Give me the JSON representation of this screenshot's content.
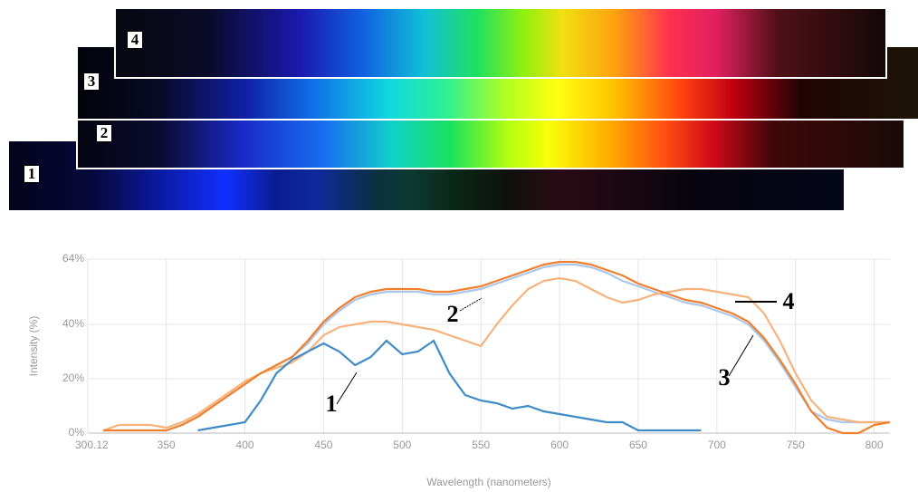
{
  "strips": {
    "labels": [
      "1",
      "2",
      "3",
      "4"
    ]
  },
  "chart_data": {
    "type": "line",
    "y_label": "Intensity (%)",
    "x_label": "Wavelength (nanometers)",
    "annotations": [
      "1",
      "2",
      "3",
      "4"
    ],
    "xlim": [
      300.12,
      810
    ],
    "ylim": [
      0,
      64
    ],
    "xticks": [
      {
        "value": 300.12,
        "label": "300.12"
      },
      350,
      400,
      450,
      500,
      550,
      600,
      650,
      700,
      750,
      800
    ],
    "yticks": [
      {
        "value": 0,
        "label": "0%"
      },
      {
        "value": 20,
        "label": "20%"
      },
      {
        "value": 40,
        "label": "40%"
      },
      {
        "value": 64,
        "label": "64%"
      }
    ],
    "grid": true,
    "x": [
      310,
      320,
      330,
      340,
      350,
      360,
      370,
      380,
      390,
      400,
      410,
      420,
      430,
      440,
      450,
      460,
      470,
      480,
      490,
      500,
      510,
      520,
      530,
      540,
      550,
      560,
      570,
      580,
      590,
      600,
      610,
      620,
      630,
      640,
      650,
      660,
      670,
      680,
      690,
      700,
      710,
      720,
      730,
      740,
      750,
      760,
      770,
      780,
      790,
      800,
      810
    ],
    "series": [
      {
        "color": "#aac8ea",
        "values": [
          1,
          1,
          1,
          1,
          1,
          3,
          6,
          10,
          14,
          18,
          22,
          25,
          28,
          33,
          40,
          45,
          49,
          51,
          52,
          52,
          52,
          51,
          51,
          52,
          53,
          55,
          57,
          59,
          61,
          62,
          62,
          61,
          59,
          56,
          54,
          52,
          50,
          48,
          47,
          45,
          43,
          40,
          34,
          26,
          17,
          8,
          5,
          4,
          4,
          4,
          4
        ]
      },
      {
        "color": "#f7b27c",
        "values": [
          1,
          3,
          3,
          3,
          2,
          4,
          7,
          11,
          15,
          19,
          22,
          24,
          26,
          30,
          36,
          39,
          40,
          41,
          41,
          40,
          39,
          38,
          36,
          34,
          32,
          40,
          47,
          53,
          56,
          57,
          56,
          53,
          50,
          48,
          49,
          51,
          52,
          53,
          53,
          52,
          51,
          50,
          44,
          34,
          22,
          12,
          6,
          5,
          4,
          4,
          4
        ]
      },
      {
        "color": "#f07f2e",
        "values": [
          1,
          1,
          1,
          1,
          1,
          3,
          6,
          10,
          14,
          18,
          22,
          25,
          28,
          34,
          41,
          46,
          50,
          52,
          53,
          53,
          53,
          52,
          52,
          53,
          54,
          56,
          58,
          60,
          62,
          63,
          63,
          62,
          60,
          58,
          55,
          53,
          51,
          49,
          48,
          46,
          44,
          41,
          35,
          27,
          18,
          8,
          2,
          0,
          0,
          3,
          4
        ]
      },
      {
        "color": "#3f8cc6",
        "values": [
          null,
          null,
          null,
          null,
          null,
          null,
          1,
          2,
          3,
          4,
          12,
          22,
          27,
          30,
          33,
          30,
          25,
          28,
          34,
          29,
          30,
          34,
          22,
          14,
          12,
          11,
          9,
          10,
          8,
          7,
          6,
          5,
          4,
          4,
          1,
          1,
          1,
          1,
          1,
          null,
          null,
          null,
          null,
          null,
          null,
          null,
          null,
          null,
          null,
          null,
          null
        ]
      }
    ]
  }
}
